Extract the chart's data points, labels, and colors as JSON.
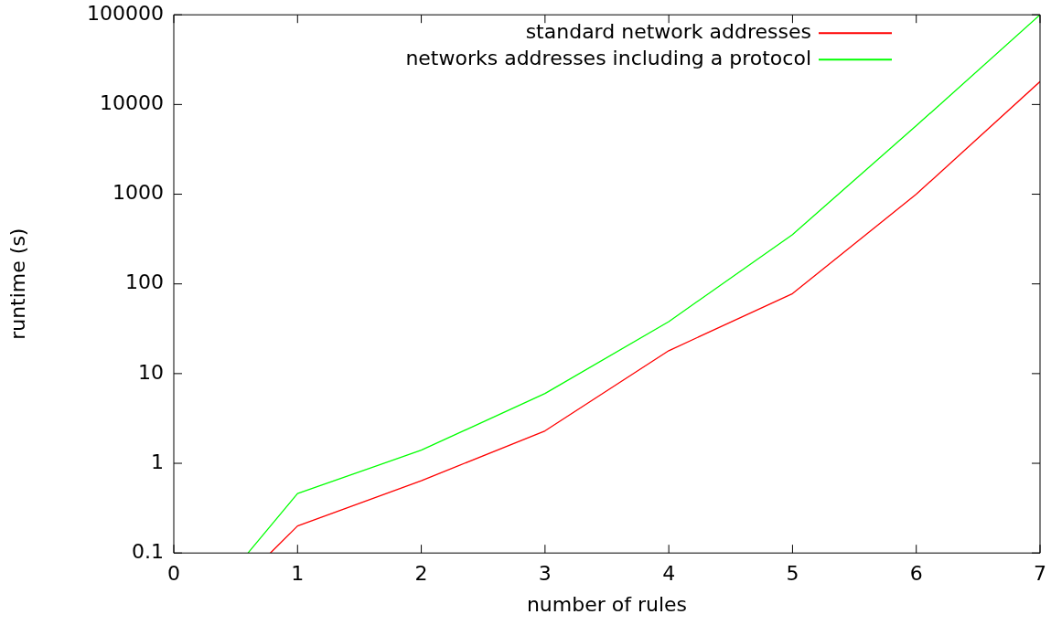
{
  "chart_data": {
    "type": "line",
    "xlabel": "number of rules",
    "ylabel": "runtime (s)",
    "log": "y",
    "grid": false,
    "legend": "top right",
    "marker": "none",
    "line_style": "solid",
    "xlim": [
      0,
      7
    ],
    "xticks": [
      0,
      1,
      2,
      3,
      4,
      5,
      6,
      7
    ],
    "ylim": [
      0.1,
      100000
    ],
    "yticks": [
      0.1,
      1,
      10,
      100,
      1000,
      10000,
      100000
    ],
    "series": [
      {
        "name": "standard network addresses",
        "color": "#ff0000",
        "x": [
          0.78,
          1,
          2,
          3,
          4,
          5,
          6,
          7
        ],
        "values": [
          0.1,
          0.2,
          0.64,
          2.3,
          18,
          78,
          1000,
          18000
        ]
      },
      {
        "name": "networks addresses including a protocol",
        "color": "#00ff00",
        "x": [
          0.6,
          1,
          2,
          3,
          4,
          5,
          6,
          7
        ],
        "values": [
          0.1,
          0.46,
          1.4,
          6,
          38,
          355,
          5800,
          100000
        ]
      }
    ]
  }
}
